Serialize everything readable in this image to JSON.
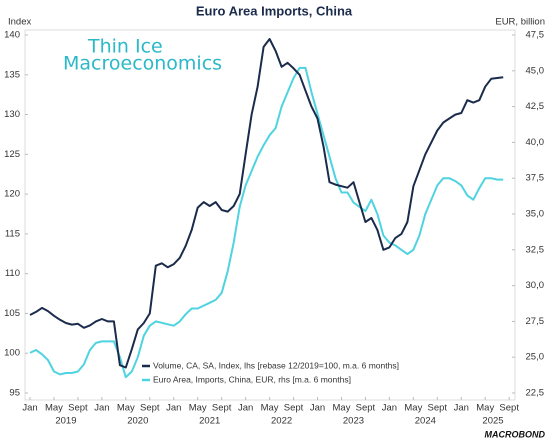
{
  "chart_data": {
    "type": "line",
    "title": "Euro Area Imports, China",
    "ylabel": "Index",
    "y2label": "EUR, billion",
    "watermark": [
      "Thin Ice",
      "Macroeconomics"
    ],
    "source_logo": "MACROBOND",
    "x": [
      "2019-01",
      "2019-02",
      "2019-03",
      "2019-04",
      "2019-05",
      "2019-06",
      "2019-07",
      "2019-08",
      "2019-09",
      "2019-10",
      "2019-11",
      "2019-12",
      "2020-01",
      "2020-02",
      "2020-03",
      "2020-04",
      "2020-05",
      "2020-06",
      "2020-07",
      "2020-08",
      "2020-09",
      "2020-10",
      "2020-11",
      "2020-12",
      "2021-01",
      "2021-02",
      "2021-03",
      "2021-04",
      "2021-05",
      "2021-06",
      "2021-07",
      "2021-08",
      "2021-09",
      "2021-10",
      "2021-11",
      "2021-12",
      "2022-01",
      "2022-02",
      "2022-03",
      "2022-04",
      "2022-05",
      "2022-06",
      "2022-07",
      "2022-08",
      "2022-09",
      "2022-10",
      "2022-11",
      "2022-12",
      "2023-01",
      "2023-02",
      "2023-03",
      "2023-04",
      "2023-05",
      "2023-06",
      "2023-07",
      "2023-08",
      "2023-09",
      "2023-10",
      "2023-11",
      "2023-12",
      "2024-01",
      "2024-02",
      "2024-03",
      "2024-04",
      "2024-05",
      "2024-06",
      "2024-07",
      "2024-08",
      "2024-09",
      "2024-10",
      "2024-11",
      "2024-12",
      "2025-01",
      "2025-02",
      "2025-03",
      "2025-04",
      "2025-05",
      "2025-06",
      "2025-07",
      "2025-08"
    ],
    "xticks": [
      {
        "value": "2019-01",
        "label": "Jan"
      },
      {
        "value": "2019-05",
        "label": "May"
      },
      {
        "value": "2019-09",
        "label": "Sept"
      },
      {
        "value": "2020-01",
        "label": "Jan"
      },
      {
        "value": "2020-05",
        "label": "May"
      },
      {
        "value": "2020-09",
        "label": "Sept"
      },
      {
        "value": "2021-01",
        "label": "Jan"
      },
      {
        "value": "2021-05",
        "label": "May"
      },
      {
        "value": "2021-09",
        "label": "Sept"
      },
      {
        "value": "2022-01",
        "label": "Jan"
      },
      {
        "value": "2022-05",
        "label": "May"
      },
      {
        "value": "2022-09",
        "label": "Sept"
      },
      {
        "value": "2023-01",
        "label": "Jan"
      },
      {
        "value": "2023-05",
        "label": "May"
      },
      {
        "value": "2023-09",
        "label": "Sept"
      },
      {
        "value": "2024-01",
        "label": "Jan"
      },
      {
        "value": "2024-05",
        "label": "May"
      },
      {
        "value": "2024-09",
        "label": "Sept"
      },
      {
        "value": "2025-01",
        "label": "Jan"
      },
      {
        "value": "2025-05",
        "label": "May"
      },
      {
        "value": "2025-09",
        "label": "Sept"
      }
    ],
    "xyears": [
      2019,
      2020,
      2021,
      2022,
      2023,
      2024,
      2025
    ],
    "ylim": [
      95,
      140
    ],
    "yticks": [
      95,
      100,
      105,
      110,
      115,
      120,
      125,
      130,
      135,
      140
    ],
    "y2lim": [
      22.5,
      47.5
    ],
    "y2ticks": [
      {
        "value": 22.5,
        "label": "22,5"
      },
      {
        "value": 25,
        "label": "25,0"
      },
      {
        "value": 27.5,
        "label": "27,5"
      },
      {
        "value": 30,
        "label": "30,0"
      },
      {
        "value": 32.5,
        "label": "32,5"
      },
      {
        "value": 35,
        "label": "35,0"
      },
      {
        "value": 37.5,
        "label": "37,5"
      },
      {
        "value": 40,
        "label": "40,0"
      },
      {
        "value": 42.5,
        "label": "42,5"
      },
      {
        "value": 45,
        "label": "45,0"
      },
      {
        "value": 47.5,
        "label": "47,5"
      }
    ],
    "grid": false,
    "legend": "bottom",
    "series": [
      {
        "name": "Volume, CA, SA, Index, lhs [rebase 12/2019=100, m.a. 6 months]",
        "color": "#1b2b4b",
        "axis": "y",
        "values": [
          104.8,
          105.2,
          105.7,
          105.3,
          104.7,
          104.2,
          103.8,
          103.6,
          103.7,
          103.2,
          103.5,
          104.0,
          104.3,
          104.0,
          104.0,
          98.5,
          98.2,
          100.5,
          103.0,
          103.8,
          105.0,
          111.0,
          111.3,
          110.8,
          111.2,
          112.0,
          113.5,
          115.5,
          118.3,
          119.0,
          118.5,
          119.0,
          118.0,
          117.8,
          118.5,
          120.0,
          125.0,
          130.0,
          133.5,
          138.5,
          139.5,
          138.0,
          136.0,
          136.5,
          135.8,
          135.0,
          133.0,
          131.0,
          129.5,
          126.0,
          121.5,
          121.2,
          121.0,
          120.8,
          121.5,
          119.0,
          116.5,
          117.0,
          115.5,
          113.0,
          113.3,
          114.5,
          115.0,
          116.5,
          121.0,
          123.0,
          125.0,
          126.5,
          128.0,
          129.0,
          129.5,
          130.0,
          130.2,
          131.8,
          131.5,
          131.8,
          133.5,
          134.5,
          134.6,
          134.7
        ]
      },
      {
        "name": "Euro Area, Imports, China, EUR, rhs [m.a. 6 months]",
        "color": "#4fd3e0",
        "axis": "y2",
        "values": [
          25.3,
          25.5,
          25.2,
          24.8,
          24.0,
          23.8,
          23.9,
          23.9,
          24.0,
          24.5,
          25.5,
          26.0,
          26.1,
          26.1,
          26.1,
          25.0,
          23.6,
          24.0,
          25.0,
          26.5,
          27.2,
          27.5,
          27.4,
          27.3,
          27.2,
          27.5,
          28.0,
          28.4,
          28.4,
          28.6,
          28.8,
          29.0,
          29.5,
          31.0,
          33.0,
          35.5,
          37.0,
          38.0,
          39.0,
          39.8,
          40.5,
          41.0,
          42.5,
          43.5,
          44.5,
          45.2,
          45.2,
          43.5,
          42.0,
          40.5,
          39.0,
          37.5,
          36.5,
          36.5,
          35.8,
          35.5,
          35.2,
          36.0,
          35.0,
          33.5,
          33.0,
          32.8,
          32.5,
          32.2,
          32.5,
          33.5,
          35.0,
          36.0,
          37.0,
          37.5,
          37.5,
          37.3,
          37.0,
          36.3,
          36.0,
          36.8,
          37.5,
          37.5,
          37.4,
          37.4
        ]
      }
    ]
  }
}
